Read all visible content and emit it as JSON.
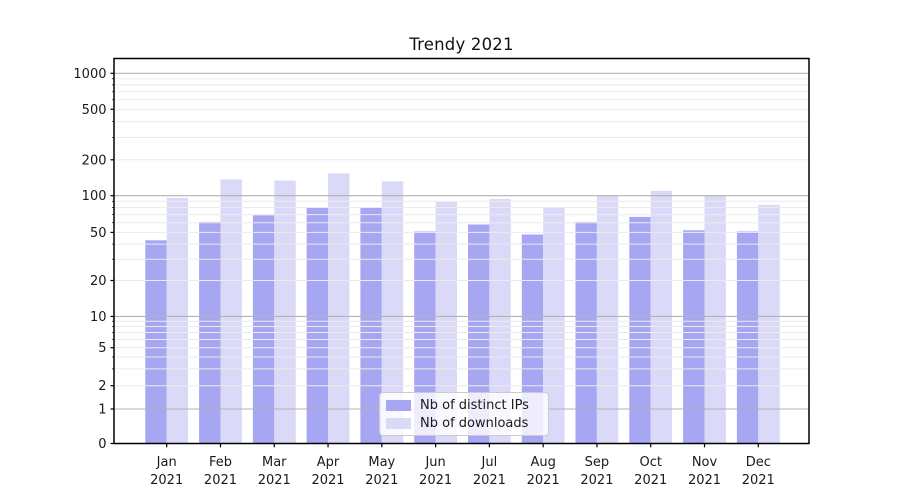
{
  "title": "Trendy 2021",
  "colors": {
    "distinct_ips": "#a6a6f2",
    "downloads": "#dadaf8",
    "major_gridline": "#b3b3b3",
    "minor_gridline": "#ebebeb",
    "axis_line": "#000000",
    "tick_text": "#1a1a1a",
    "legend_border": "#cccccc"
  },
  "legend": {
    "items": [
      {
        "label": "Nb of distinct IPs",
        "series": "distinct_ips"
      },
      {
        "label": "Nb of downloads",
        "series": "downloads"
      }
    ]
  },
  "chart_data": {
    "type": "bar",
    "title": "Trendy 2021",
    "xlabel": "",
    "ylabel": "",
    "yscale": "log-like with compressed 0-10 region (ticks pixel-anchored)",
    "ylim": [
      0,
      1330
    ],
    "grid": "on (minor log gridlines, darker lines at 1/10/100/1000)",
    "legend_position": "lower center (inside plot)",
    "categories": [
      "Jan 2021",
      "Feb 2021",
      "Mar 2021",
      "Apr 2021",
      "May 2021",
      "Jun 2021",
      "Jul 2021",
      "Aug 2021",
      "Sep 2021",
      "Oct 2021",
      "Nov 2021",
      "Dec 2021"
    ],
    "series": [
      {
        "name": "Nb of distinct IPs",
        "values": [
          43,
          61,
          69,
          80,
          80,
          51,
          58,
          48,
          61,
          67,
          52,
          51
        ]
      },
      {
        "name": "Nb of downloads",
        "values": [
          96,
          137,
          134,
          154,
          132,
          89,
          94,
          80,
          100,
          110,
          100,
          84
        ]
      }
    ],
    "y_ticks": [
      {
        "label": "0",
        "value": 0,
        "y": 443.5
      },
      {
        "label": "1",
        "value": 1,
        "y": 409.0
      },
      {
        "label": "2",
        "value": 2,
        "y": 385.7
      },
      {
        "label": "5",
        "value": 5,
        "y": 347.7
      },
      {
        "label": "10",
        "value": 10,
        "y": 316.4
      },
      {
        "label": "20",
        "value": 20,
        "y": 280.5
      },
      {
        "label": "50",
        "value": 50,
        "y": 232.4
      },
      {
        "label": "100",
        "value": 100,
        "y": 195.7
      },
      {
        "label": "200",
        "value": 200,
        "y": 159.8
      },
      {
        "label": "500",
        "value": 500,
        "y": 109.3
      },
      {
        "label": "1000",
        "value": 1000,
        "y": 73.3
      }
    ]
  }
}
